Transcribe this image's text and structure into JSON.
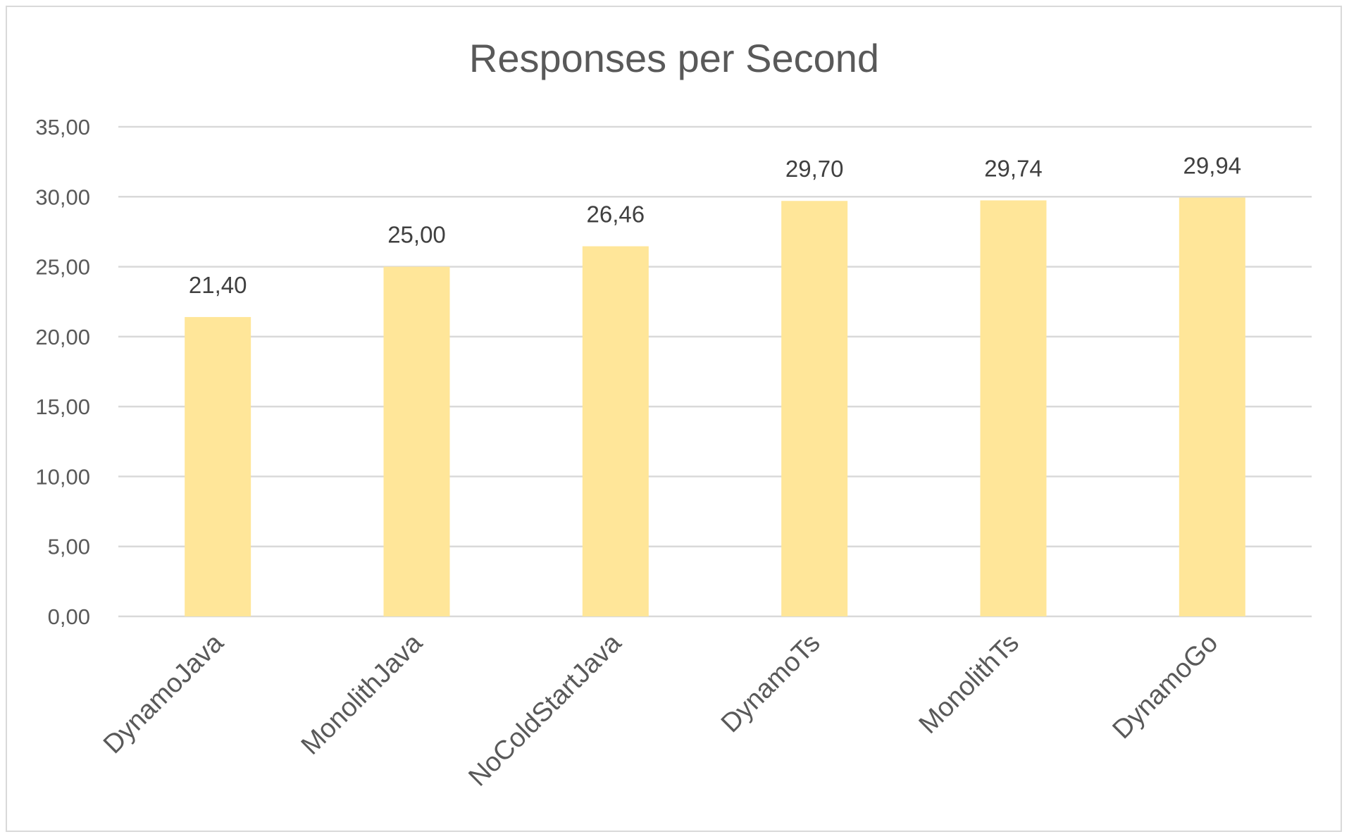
{
  "chart_data": {
    "type": "bar",
    "title": "Responses per Second",
    "xlabel": "",
    "ylabel": "",
    "categories": [
      "DynamoJava",
      "MonolithJava",
      "NoColdStartJava",
      "DynamoTs",
      "MonolithTs",
      "DynamoGo"
    ],
    "values": [
      21.4,
      25.0,
      26.46,
      29.7,
      29.74,
      29.94
    ],
    "data_labels": [
      "21,40",
      "25,00",
      "26,46",
      "29,70",
      "29,74",
      "29,94"
    ],
    "ylim": [
      0,
      35
    ],
    "yticks": [
      0,
      5,
      10,
      15,
      20,
      25,
      30,
      35
    ],
    "ytick_labels": [
      "0,00",
      "5,00",
      "10,00",
      "15,00",
      "20,00",
      "25,00",
      "30,00",
      "35,00"
    ],
    "grid": true,
    "legend": "none",
    "bar_color": "#FFE699"
  }
}
